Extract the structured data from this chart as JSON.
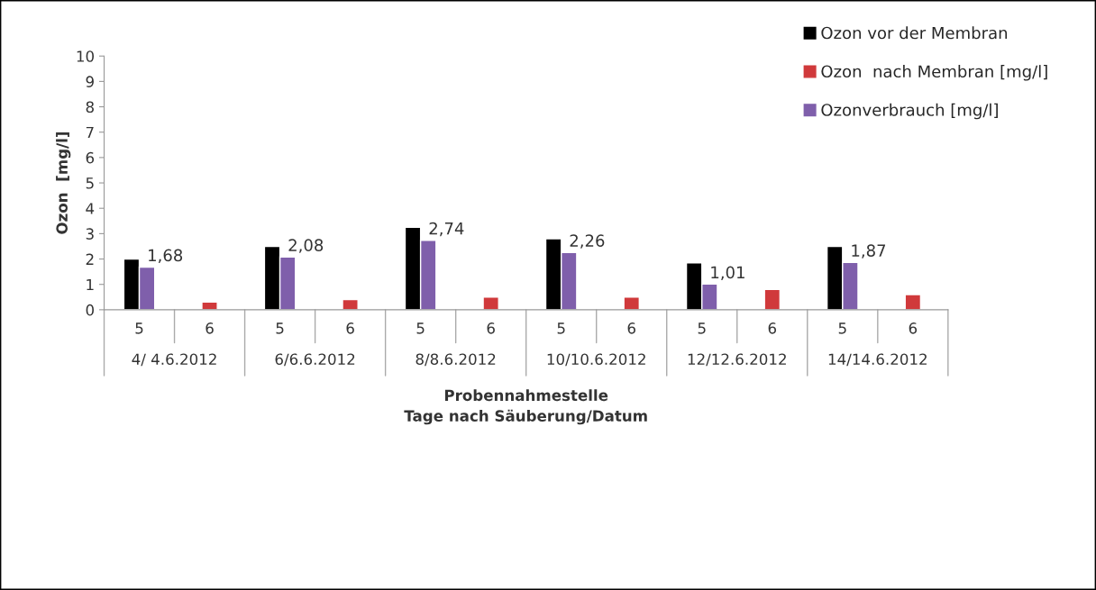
{
  "chart_data": {
    "type": "bar",
    "ylabel": "Ozon  [mg/l]",
    "xlabel": "Probennahmestelle\nTage nach Säuberung/Datum",
    "categories": [
      "5",
      "6",
      "5",
      "6",
      "5",
      "6",
      "5",
      "6",
      "5",
      "6",
      "5",
      "6"
    ],
    "annotations": [
      "4/ 4.6.2012",
      "6/6.6.2012",
      "8/8.6.2012",
      "10/10.6.2012",
      "12/12.6.2012",
      "14/14.6.2012"
    ],
    "series": [
      {
        "name": "Ozon vor der Membran",
        "color": "#000000",
        "values": [
          2.0,
          null,
          2.5,
          null,
          3.25,
          null,
          2.8,
          null,
          1.85,
          null,
          2.5,
          null
        ]
      },
      {
        "name": "Ozon  nach Membran [mg/l]",
        "color": "#d0393b",
        "values": [
          null,
          0.3,
          null,
          0.4,
          null,
          0.5,
          null,
          0.5,
          null,
          0.8,
          null,
          0.6
        ]
      },
      {
        "name": "Ozonverbrauch [mg/l]",
        "color": "#7f5fab",
        "values": [
          1.68,
          null,
          2.08,
          null,
          2.74,
          null,
          2.26,
          null,
          1.01,
          null,
          1.87,
          null
        ],
        "value_labels": [
          "1,68",
          null,
          "2,08",
          null,
          "2,74",
          null,
          "2,26",
          null,
          "1,01",
          null,
          "1,87",
          null
        ]
      }
    ],
    "ylim": [
      0,
      10
    ],
    "yticks": [
      0,
      1,
      2,
      3,
      4,
      5,
      6,
      7,
      8,
      9,
      10
    ],
    "grid": false,
    "legend": "top right"
  }
}
